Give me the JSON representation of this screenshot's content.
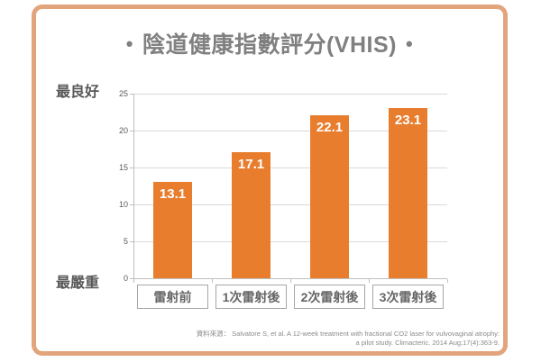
{
  "frame": {
    "border_color": "#E2A47C"
  },
  "title": {
    "bullet": "•",
    "text": "陰道健康指數評分(VHIS)",
    "color": "#808080"
  },
  "y_axis": {
    "top_label": "最良好",
    "bottom_label": "最嚴重"
  },
  "source": {
    "line1": "資料來源： Salvatore S, et al. A 12-week treatment  with fractional CO2 laser for vulvovaginal atrophy:",
    "line2": "a pilot study. Climacteric. 2014 Aug;17(4):363-9."
  },
  "chart_data": {
    "type": "bar",
    "title": "陰道健康指數評分(VHIS)",
    "categories": [
      "雷射前",
      "1次雷射後",
      "2次雷射後",
      "3次雷射後"
    ],
    "values": [
      13.1,
      17.1,
      22.1,
      23.1
    ],
    "yticks": [
      0,
      5,
      10,
      15,
      20,
      25
    ],
    "ylim": [
      0,
      25
    ],
    "grid": true,
    "legend": false,
    "bar_color": "#E87D2E",
    "value_label_color": "#FFFFFF",
    "ylabel_top": "最良好",
    "ylabel_bottom": "最嚴重",
    "xlabel": "",
    "ylabel": ""
  }
}
